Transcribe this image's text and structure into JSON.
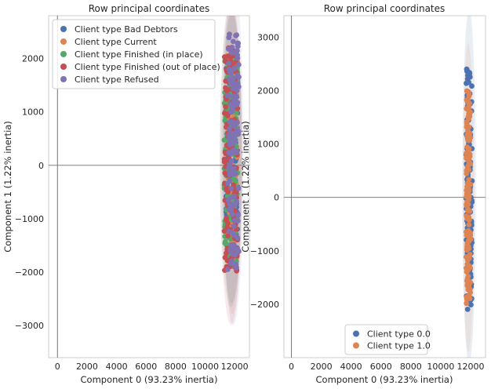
{
  "chart_data": [
    {
      "type": "scatter",
      "title": "Row principal coordinates",
      "xlabel": "Component 0 (93.23% inertia)",
      "ylabel": "Component 1 (1.22% inertia)",
      "xlim": [
        -600,
        13000
      ],
      "ylim": [
        -3600,
        2800
      ],
      "xticks": [
        0,
        2000,
        4000,
        6000,
        8000,
        10000,
        12000
      ],
      "yticks": [
        -3000,
        -2000,
        -1000,
        0,
        1000,
        2000
      ],
      "grid": false,
      "reference_lines": {
        "x": 0,
        "y": 0
      },
      "legend": "top-left",
      "series": [
        {
          "name": "Client type Bad Debtors",
          "color": "#4c72b0",
          "x_range": [
            11400,
            12200
          ],
          "y_range": [
            -1750,
            2050
          ]
        },
        {
          "name": "Client type Current",
          "color": "#dd8452",
          "x_range": [
            11500,
            12200
          ],
          "y_range": [
            -1900,
            2100
          ]
        },
        {
          "name": "Client type Finished (in place)",
          "color": "#55a868",
          "x_range": [
            11300,
            12200
          ],
          "y_range": [
            -1800,
            2100
          ]
        },
        {
          "name": "Client type Finished (out of place)",
          "color": "#c44e52",
          "x_range": [
            11300,
            12200
          ],
          "y_range": [
            -2050,
            2200
          ]
        },
        {
          "name": "Client type Refused",
          "color": "#8172b3",
          "x_range": [
            11500,
            12300
          ],
          "y_range": [
            -2000,
            2500
          ]
        }
      ]
    },
    {
      "type": "scatter",
      "title": "Row principal coordinates",
      "xlabel": "Component 0 (93.23% inertia)",
      "ylabel": "Component 1 (1.22% inertia)",
      "xlim": [
        -500,
        13000
      ],
      "ylim": [
        -3000,
        3400
      ],
      "xticks": [
        0,
        2000,
        4000,
        6000,
        8000,
        10000,
        12000
      ],
      "yticks": [
        -2000,
        -1000,
        0,
        1000,
        2000,
        3000
      ],
      "grid": false,
      "reference_lines": {
        "x": 0,
        "y": 0
      },
      "legend": "bottom-right",
      "series": [
        {
          "name": "Client type 0.0",
          "color": "#4c72b0",
          "x_range": [
            11700,
            12100
          ],
          "y_range": [
            -2100,
            2500
          ]
        },
        {
          "name": "Client type 1.0",
          "color": "#dd8452",
          "x_range": [
            11700,
            12000
          ],
          "y_range": [
            -2000,
            2000
          ]
        }
      ]
    }
  ]
}
